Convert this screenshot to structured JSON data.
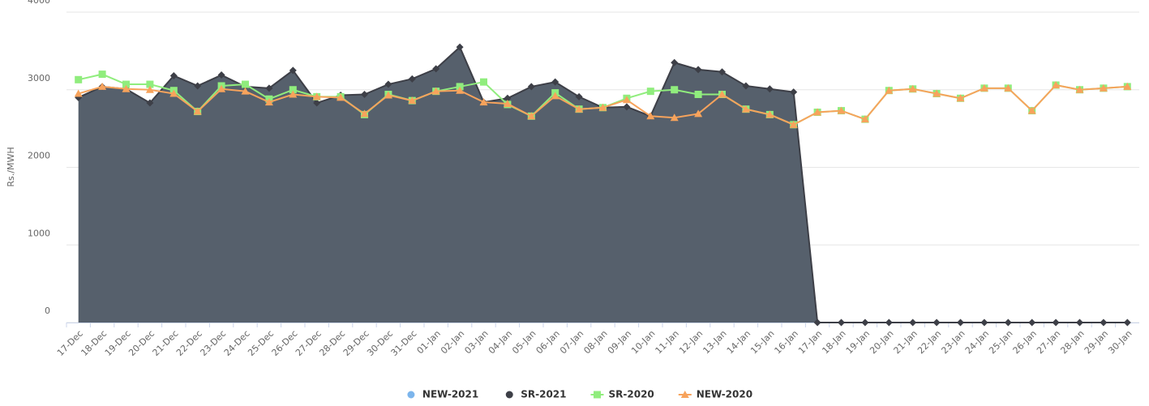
{
  "chart_data": {
    "type": "line",
    "y_label": "Rs./MWH",
    "categories": [
      "17-Dec",
      "18-Dec",
      "19-Dec",
      "20-Dec",
      "21-Dec",
      "22-Dec",
      "23-Dec",
      "24-Dec",
      "25-Dec",
      "26-Dec",
      "27-Dec",
      "28-Dec",
      "29-Dec",
      "30-Dec",
      "31-Dec",
      "01-Jan",
      "02-Jan",
      "03-Jan",
      "04-Jan",
      "05-Jan",
      "06-Jan",
      "07-Jan",
      "08-Jan",
      "09-Jan",
      "10-Jan",
      "11-Jan",
      "12-Jan",
      "13-Jan",
      "14-Jan",
      "15-Jan",
      "16-Jan",
      "17-Jan",
      "18-Jan",
      "19-Jan",
      "20-Jan",
      "21-Jan",
      "22-Jan",
      "23-Jan",
      "24-Jan",
      "25-Jan",
      "26-Jan",
      "27-Jan",
      "28-Jan",
      "29-Jan",
      "30-Jan"
    ],
    "ylim": [
      0,
      4000
    ],
    "yticks": [
      0,
      1000,
      2000,
      3000,
      4000
    ],
    "grid": true,
    "legend": "bottom",
    "series": [
      {
        "name": "NEW-2021",
        "color": "#7cb5ec",
        "marker": "circle",
        "values": [
          null,
          null,
          null,
          null,
          null,
          null,
          null,
          null,
          null,
          null,
          null,
          null,
          null,
          null,
          null,
          null,
          null,
          null,
          null,
          null,
          null,
          null,
          null,
          null,
          null,
          null,
          null,
          null,
          null,
          null,
          null,
          null,
          null,
          null,
          null,
          null,
          null,
          null,
          null,
          null,
          null,
          null,
          null,
          null,
          null
        ]
      },
      {
        "name": "SR-2021",
        "color": "#3d3f47",
        "fill": "#56606c",
        "type": "area",
        "marker": "diamond",
        "values": [
          2900,
          3040,
          3010,
          2830,
          3180,
          3050,
          3190,
          3040,
          3020,
          3250,
          2830,
          2930,
          2940,
          3070,
          3140,
          3270,
          3550,
          2840,
          2890,
          3040,
          3100,
          2910,
          2770,
          2780,
          2660,
          3350,
          3260,
          3230,
          3050,
          3010,
          2970,
          0,
          0,
          0,
          0,
          0,
          0,
          0,
          0,
          0,
          0,
          0,
          0,
          0,
          0
        ]
      },
      {
        "name": "SR-2020",
        "color": "#90ed7d",
        "marker": "square",
        "values": [
          3130,
          3200,
          3070,
          3070,
          2990,
          2720,
          3050,
          3070,
          2880,
          3000,
          2910,
          2910,
          2680,
          2940,
          2860,
          2980,
          3040,
          3100,
          2810,
          2660,
          2960,
          2750,
          2770,
          2890,
          2980,
          3000,
          2940,
          2940,
          2750,
          2680,
          2550,
          2710,
          2730,
          2620,
          2990,
          3010,
          2950,
          2890,
          3020,
          3020,
          2730,
          3060,
          3000,
          3020,
          3040
        ]
      },
      {
        "name": "NEW-2020",
        "color": "#f7a35c",
        "marker": "triangle",
        "values": [
          2950,
          3040,
          3010,
          3000,
          2950,
          2720,
          3010,
          2980,
          2840,
          2940,
          2910,
          2900,
          2690,
          2930,
          2860,
          2980,
          2990,
          2840,
          2820,
          2660,
          2920,
          2750,
          2770,
          2870,
          2660,
          2640,
          2690,
          2940,
          2750,
          2680,
          2550,
          2710,
          2730,
          2620,
          2990,
          3010,
          2950,
          2890,
          3020,
          3020,
          2730,
          3060,
          3000,
          3020,
          3040
        ]
      }
    ]
  }
}
